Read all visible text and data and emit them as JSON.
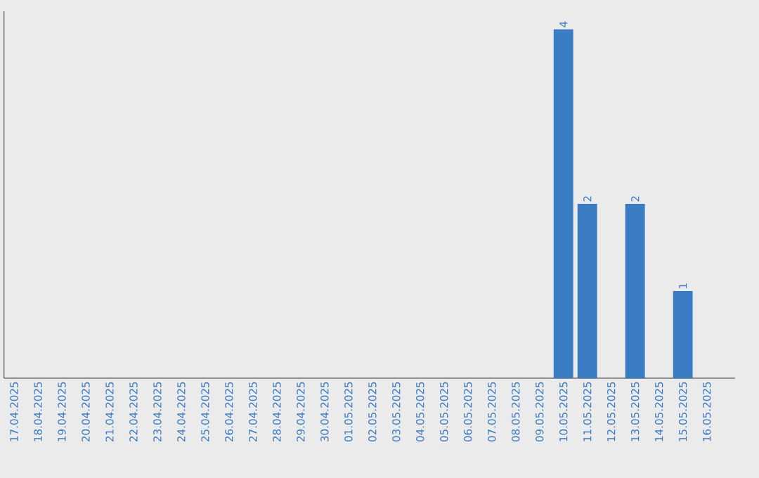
{
  "chart_data": {
    "type": "bar",
    "categories": [
      "17.04.2025",
      "18.04.2025",
      "19.04.2025",
      "20.04.2025",
      "21.04.2025",
      "22.04.2025",
      "23.04.2025",
      "24.04.2025",
      "25.04.2025",
      "26.04.2025",
      "27.04.2025",
      "28.04.2025",
      "29.04.2025",
      "30.04.2025",
      "01.05.2025",
      "02.05.2025",
      "03.05.2025",
      "04.05.2025",
      "05.05.2025",
      "06.05.2025",
      "07.05.2025",
      "08.05.2025",
      "09.05.2025",
      "10.05.2025",
      "11.05.2025",
      "12.05.2025",
      "13.05.2025",
      "14.05.2025",
      "15.05.2025",
      "16.05.2025"
    ],
    "values": [
      null,
      null,
      null,
      null,
      null,
      null,
      null,
      null,
      null,
      null,
      null,
      null,
      null,
      null,
      null,
      null,
      null,
      null,
      null,
      null,
      null,
      null,
      null,
      4,
      2,
      null,
      2,
      null,
      1,
      null
    ],
    "value_labels": [
      null,
      null,
      null,
      null,
      null,
      null,
      null,
      null,
      null,
      null,
      null,
      null,
      null,
      null,
      null,
      null,
      null,
      null,
      null,
      null,
      null,
      null,
      null,
      "4",
      "2",
      null,
      "2",
      null,
      "1",
      null
    ],
    "color": "#3a7cc4",
    "tick_labels": "x"
  }
}
